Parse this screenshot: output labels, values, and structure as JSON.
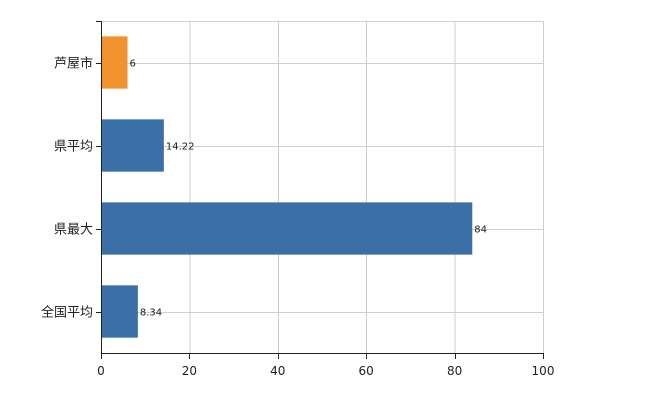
{
  "chart_data": {
    "type": "bar",
    "orientation": "horizontal",
    "title": "",
    "xlabel": "",
    "ylabel": "",
    "categories": [
      "芦屋市",
      "県平均",
      "県最大",
      "全国平均"
    ],
    "values": [
      6,
      14.22,
      84,
      8.34
    ],
    "data_labels": [
      "6",
      "14.22",
      "84",
      "8.34"
    ],
    "bar_colors": [
      "#F0922E",
      "#3B6FA8",
      "#3B6FA8",
      "#3B6FA8"
    ],
    "xlim": [
      0,
      100
    ],
    "xticks": [
      0,
      20,
      40,
      60,
      80,
      100
    ],
    "xtick_labels": [
      "0",
      "20",
      "40",
      "60",
      "80",
      "100"
    ],
    "grid": true,
    "legend": "none"
  }
}
